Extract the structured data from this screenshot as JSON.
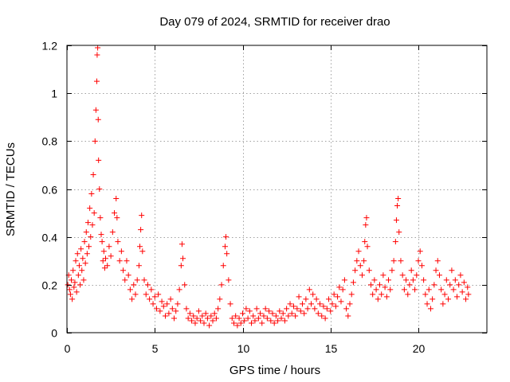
{
  "chart_data": {
    "type": "scatter",
    "title": "Day 079 of 2024, SRMTID for receiver drao",
    "xlabel": "GPS time / hours",
    "ylabel": "SRMTID / TECUs",
    "xlim": [
      0,
      23.9
    ],
    "ylim": [
      0,
      1.2
    ],
    "xticks": [
      0,
      5,
      10,
      15,
      20
    ],
    "xtick_labels": [
      "0",
      "5",
      "10",
      "15",
      "20"
    ],
    "yticks": [
      0,
      0.2,
      0.4,
      0.6,
      0.8,
      1,
      1.2
    ],
    "ytick_labels": [
      "0",
      "0.2",
      "0.4",
      "0.6",
      "0.8",
      "1",
      "1.2"
    ],
    "grid": true,
    "marker": "+",
    "color": "#ff0000",
    "series": [
      {
        "name": "SRMTID",
        "points": [
          [
            0.05,
            0.2
          ],
          [
            0.1,
            0.24
          ],
          [
            0.15,
            0.18
          ],
          [
            0.2,
            0.16
          ],
          [
            0.25,
            0.22
          ],
          [
            0.3,
            0.14
          ],
          [
            0.35,
            0.26
          ],
          [
            0.4,
            0.19
          ],
          [
            0.45,
            0.21
          ],
          [
            0.5,
            0.3
          ],
          [
            0.55,
            0.17
          ],
          [
            0.6,
            0.33
          ],
          [
            0.65,
            0.24
          ],
          [
            0.7,
            0.28
          ],
          [
            0.75,
            0.2
          ],
          [
            0.8,
            0.35
          ],
          [
            0.85,
            0.26
          ],
          [
            0.9,
            0.31
          ],
          [
            0.95,
            0.22
          ],
          [
            1.0,
            0.38
          ],
          [
            1.05,
            0.29
          ],
          [
            1.1,
            0.42
          ],
          [
            1.15,
            0.33
          ],
          [
            1.2,
            0.46
          ],
          [
            1.25,
            0.36
          ],
          [
            1.3,
            0.52
          ],
          [
            1.35,
            0.4
          ],
          [
            1.4,
            0.58
          ],
          [
            1.45,
            0.45
          ],
          [
            1.5,
            0.66
          ],
          [
            1.55,
            0.5
          ],
          [
            1.6,
            0.8
          ],
          [
            1.65,
            0.93
          ],
          [
            1.7,
            1.05
          ],
          [
            1.72,
            1.16
          ],
          [
            1.75,
            1.19
          ],
          [
            1.78,
            0.89
          ],
          [
            1.8,
            0.72
          ],
          [
            1.85,
            0.6
          ],
          [
            1.9,
            0.48
          ],
          [
            1.95,
            0.41
          ],
          [
            2.0,
            0.38
          ],
          [
            2.05,
            0.3
          ],
          [
            2.1,
            0.34
          ],
          [
            2.15,
            0.27
          ],
          [
            2.2,
            0.31
          ],
          [
            2.3,
            0.28
          ],
          [
            2.4,
            0.36
          ],
          [
            2.5,
            0.32
          ],
          [
            2.6,
            0.42
          ],
          [
            2.7,
            0.5
          ],
          [
            2.8,
            0.56
          ],
          [
            2.85,
            0.48
          ],
          [
            2.9,
            0.38
          ],
          [
            3.0,
            0.3
          ],
          [
            3.1,
            0.34
          ],
          [
            3.2,
            0.26
          ],
          [
            3.3,
            0.22
          ],
          [
            3.4,
            0.3
          ],
          [
            3.5,
            0.24
          ],
          [
            3.6,
            0.18
          ],
          [
            3.7,
            0.14
          ],
          [
            3.8,
            0.2
          ],
          [
            3.9,
            0.16
          ],
          [
            4.0,
            0.22
          ],
          [
            4.1,
            0.28
          ],
          [
            4.15,
            0.36
          ],
          [
            4.2,
            0.43
          ],
          [
            4.25,
            0.49
          ],
          [
            4.3,
            0.34
          ],
          [
            4.4,
            0.22
          ],
          [
            4.5,
            0.16
          ],
          [
            4.6,
            0.2
          ],
          [
            4.7,
            0.14
          ],
          [
            4.8,
            0.18
          ],
          [
            4.9,
            0.12
          ],
          [
            5.0,
            0.15
          ],
          [
            5.1,
            0.1
          ],
          [
            5.2,
            0.16
          ],
          [
            5.3,
            0.09
          ],
          [
            5.4,
            0.13
          ],
          [
            5.5,
            0.11
          ],
          [
            5.6,
            0.07
          ],
          [
            5.7,
            0.12
          ],
          [
            5.8,
            0.08
          ],
          [
            5.9,
            0.14
          ],
          [
            6.0,
            0.1
          ],
          [
            6.1,
            0.06
          ],
          [
            6.2,
            0.09
          ],
          [
            6.3,
            0.12
          ],
          [
            6.4,
            0.18
          ],
          [
            6.5,
            0.28
          ],
          [
            6.55,
            0.37
          ],
          [
            6.6,
            0.31
          ],
          [
            6.7,
            0.2
          ],
          [
            6.8,
            0.1
          ],
          [
            6.9,
            0.06
          ],
          [
            7.0,
            0.08
          ],
          [
            7.1,
            0.05
          ],
          [
            7.2,
            0.07
          ],
          [
            7.3,
            0.04
          ],
          [
            7.4,
            0.06
          ],
          [
            7.5,
            0.09
          ],
          [
            7.6,
            0.05
          ],
          [
            7.7,
            0.07
          ],
          [
            7.8,
            0.04
          ],
          [
            7.9,
            0.08
          ],
          [
            8.0,
            0.06
          ],
          [
            8.1,
            0.03
          ],
          [
            8.2,
            0.07
          ],
          [
            8.3,
            0.05
          ],
          [
            8.4,
            0.08
          ],
          [
            8.5,
            0.06
          ],
          [
            8.6,
            0.1
          ],
          [
            8.7,
            0.14
          ],
          [
            8.8,
            0.2
          ],
          [
            8.9,
            0.28
          ],
          [
            9.0,
            0.36
          ],
          [
            9.05,
            0.4
          ],
          [
            9.1,
            0.33
          ],
          [
            9.2,
            0.22
          ],
          [
            9.3,
            0.12
          ],
          [
            9.4,
            0.06
          ],
          [
            9.5,
            0.04
          ],
          [
            9.6,
            0.07
          ],
          [
            9.7,
            0.03
          ],
          [
            9.8,
            0.06
          ],
          [
            9.9,
            0.04
          ],
          [
            10.0,
            0.08
          ],
          [
            10.1,
            0.05
          ],
          [
            10.2,
            0.1
          ],
          [
            10.3,
            0.06
          ],
          [
            10.4,
            0.09
          ],
          [
            10.5,
            0.04
          ],
          [
            10.6,
            0.07
          ],
          [
            10.7,
            0.05
          ],
          [
            10.8,
            0.1
          ],
          [
            10.9,
            0.06
          ],
          [
            11.0,
            0.08
          ],
          [
            11.1,
            0.04
          ],
          [
            11.2,
            0.07
          ],
          [
            11.3,
            0.1
          ],
          [
            11.4,
            0.06
          ],
          [
            11.5,
            0.09
          ],
          [
            11.6,
            0.05
          ],
          [
            11.7,
            0.08
          ],
          [
            11.8,
            0.04
          ],
          [
            11.9,
            0.07
          ],
          [
            12.0,
            0.05
          ],
          [
            12.1,
            0.09
          ],
          [
            12.2,
            0.06
          ],
          [
            12.3,
            0.08
          ],
          [
            12.4,
            0.05
          ],
          [
            12.5,
            0.1
          ],
          [
            12.6,
            0.07
          ],
          [
            12.7,
            0.12
          ],
          [
            12.8,
            0.08
          ],
          [
            12.9,
            0.11
          ],
          [
            13.0,
            0.07
          ],
          [
            13.1,
            0.1
          ],
          [
            13.2,
            0.15
          ],
          [
            13.3,
            0.09
          ],
          [
            13.4,
            0.12
          ],
          [
            13.5,
            0.08
          ],
          [
            13.6,
            0.14
          ],
          [
            13.7,
            0.1
          ],
          [
            13.8,
            0.18
          ],
          [
            13.9,
            0.12
          ],
          [
            14.0,
            0.16
          ],
          [
            14.1,
            0.1
          ],
          [
            14.2,
            0.14
          ],
          [
            14.3,
            0.08
          ],
          [
            14.4,
            0.12
          ],
          [
            14.5,
            0.07
          ],
          [
            14.6,
            0.11
          ],
          [
            14.7,
            0.06
          ],
          [
            14.8,
            0.1
          ],
          [
            14.9,
            0.14
          ],
          [
            15.0,
            0.09
          ],
          [
            15.1,
            0.12
          ],
          [
            15.2,
            0.16
          ],
          [
            15.3,
            0.11
          ],
          [
            15.4,
            0.15
          ],
          [
            15.5,
            0.19
          ],
          [
            15.6,
            0.13
          ],
          [
            15.7,
            0.18
          ],
          [
            15.8,
            0.22
          ],
          [
            15.9,
            0.1
          ],
          [
            16.0,
            0.07
          ],
          [
            16.1,
            0.12
          ],
          [
            16.2,
            0.16
          ],
          [
            16.3,
            0.21
          ],
          [
            16.4,
            0.26
          ],
          [
            16.5,
            0.3
          ],
          [
            16.6,
            0.34
          ],
          [
            16.7,
            0.28
          ],
          [
            16.8,
            0.24
          ],
          [
            16.9,
            0.3
          ],
          [
            16.95,
            0.38
          ],
          [
            17.0,
            0.45
          ],
          [
            17.05,
            0.48
          ],
          [
            17.1,
            0.36
          ],
          [
            17.2,
            0.26
          ],
          [
            17.3,
            0.2
          ],
          [
            17.4,
            0.16
          ],
          [
            17.5,
            0.22
          ],
          [
            17.6,
            0.18
          ],
          [
            17.7,
            0.14
          ],
          [
            17.8,
            0.2
          ],
          [
            17.9,
            0.16
          ],
          [
            18.0,
            0.24
          ],
          [
            18.1,
            0.19
          ],
          [
            18.2,
            0.15
          ],
          [
            18.3,
            0.22
          ],
          [
            18.4,
            0.18
          ],
          [
            18.5,
            0.26
          ],
          [
            18.6,
            0.3
          ],
          [
            18.7,
            0.38
          ],
          [
            18.75,
            0.47
          ],
          [
            18.8,
            0.53
          ],
          [
            18.85,
            0.56
          ],
          [
            18.9,
            0.42
          ],
          [
            19.0,
            0.3
          ],
          [
            19.1,
            0.24
          ],
          [
            19.2,
            0.18
          ],
          [
            19.3,
            0.22
          ],
          [
            19.4,
            0.16
          ],
          [
            19.5,
            0.2
          ],
          [
            19.6,
            0.26
          ],
          [
            19.7,
            0.22
          ],
          [
            19.8,
            0.18
          ],
          [
            19.9,
            0.24
          ],
          [
            20.0,
            0.3
          ],
          [
            20.1,
            0.34
          ],
          [
            20.2,
            0.28
          ],
          [
            20.3,
            0.22
          ],
          [
            20.4,
            0.16
          ],
          [
            20.5,
            0.12
          ],
          [
            20.6,
            0.18
          ],
          [
            20.7,
            0.1
          ],
          [
            20.8,
            0.14
          ],
          [
            20.9,
            0.2
          ],
          [
            21.0,
            0.26
          ],
          [
            21.1,
            0.3
          ],
          [
            21.2,
            0.24
          ],
          [
            21.3,
            0.18
          ],
          [
            21.4,
            0.12
          ],
          [
            21.5,
            0.16
          ],
          [
            21.6,
            0.22
          ],
          [
            21.7,
            0.14
          ],
          [
            21.8,
            0.2
          ],
          [
            21.9,
            0.26
          ],
          [
            22.0,
            0.18
          ],
          [
            22.1,
            0.22
          ],
          [
            22.2,
            0.15
          ],
          [
            22.3,
            0.2
          ],
          [
            22.4,
            0.24
          ],
          [
            22.5,
            0.17
          ],
          [
            22.6,
            0.21
          ],
          [
            22.7,
            0.14
          ],
          [
            22.8,
            0.19
          ],
          [
            22.85,
            0.16
          ]
        ]
      }
    ]
  }
}
